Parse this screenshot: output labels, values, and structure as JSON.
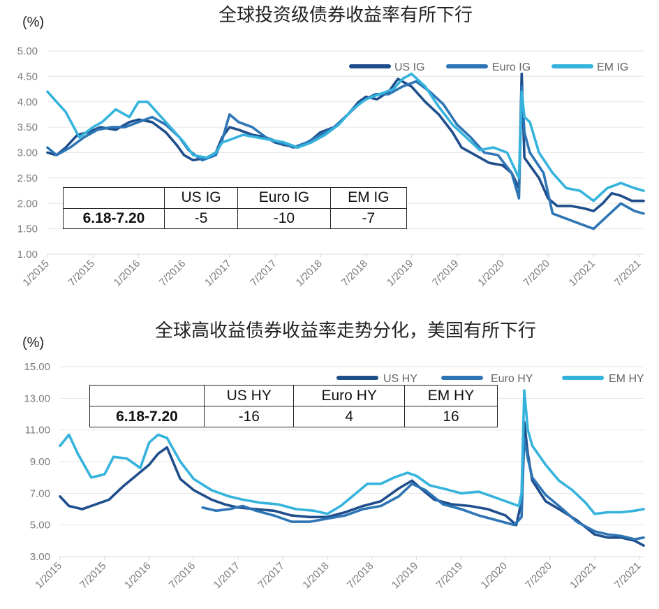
{
  "chart_data": [
    {
      "type": "line",
      "title": "全球投资级债券收益率有所下行",
      "unit_label": "(%)",
      "ylim": [
        1.0,
        5.0
      ],
      "yticks": [
        "5.00",
        "4.50",
        "4.00",
        "3.50",
        "3.00",
        "2.50",
        "2.00",
        "1.50",
        "1.00"
      ],
      "xlim": [
        2015.0,
        2021.55
      ],
      "xticks": [
        "1/2015",
        "7/2015",
        "1/2016",
        "7/2016",
        "1/2017",
        "7/2017",
        "1/2018",
        "7/2018",
        "1/2019",
        "7/2019",
        "1/2020",
        "7/2020",
        "1/2021",
        "7/2021"
      ],
      "grid": true,
      "legend_position": "top-right",
      "series": [
        {
          "name": "US IG",
          "color": "#1f4e8c",
          "x": [
            2015.0,
            2015.1,
            2015.2,
            2015.33,
            2015.45,
            2015.58,
            2015.75,
            2015.9,
            2016.0,
            2016.15,
            2016.3,
            2016.42,
            2016.5,
            2016.6,
            2016.75,
            2016.85,
            2016.92,
            2017.0,
            2017.1,
            2017.25,
            2017.4,
            2017.5,
            2017.6,
            2017.75,
            2017.9,
            2018.0,
            2018.15,
            2018.3,
            2018.42,
            2018.5,
            2018.62,
            2018.75,
            2018.85,
            2019.0,
            2019.15,
            2019.3,
            2019.45,
            2019.55,
            2019.7,
            2019.85,
            2020.0,
            2020.1,
            2020.18,
            2020.21,
            2020.24,
            2020.3,
            2020.4,
            2020.5,
            2020.6,
            2020.75,
            2020.9,
            2021.0,
            2021.1,
            2021.2,
            2021.3,
            2021.42,
            2021.55
          ],
          "values": [
            3.0,
            2.95,
            3.1,
            3.35,
            3.4,
            3.5,
            3.45,
            3.6,
            3.65,
            3.6,
            3.4,
            3.15,
            2.95,
            2.85,
            2.9,
            3.0,
            3.3,
            3.5,
            3.45,
            3.35,
            3.3,
            3.2,
            3.15,
            3.1,
            3.25,
            3.4,
            3.5,
            3.75,
            4.0,
            4.1,
            4.05,
            4.2,
            4.45,
            4.3,
            4.0,
            3.75,
            3.4,
            3.1,
            2.95,
            2.8,
            2.75,
            2.6,
            2.3,
            4.55,
            2.9,
            2.75,
            2.5,
            2.1,
            1.95,
            1.95,
            1.9,
            1.85,
            2.0,
            2.2,
            2.15,
            2.05,
            2.05
          ]
        },
        {
          "name": "Euro IG",
          "color": "#2e75b6",
          "x": [
            2015.0,
            2015.1,
            2015.25,
            2015.4,
            2015.55,
            2015.7,
            2015.85,
            2016.0,
            2016.15,
            2016.3,
            2016.45,
            2016.55,
            2016.7,
            2016.85,
            2016.92,
            2017.0,
            2017.1,
            2017.25,
            2017.4,
            2017.55,
            2017.7,
            2017.85,
            2018.0,
            2018.15,
            2018.3,
            2018.45,
            2018.6,
            2018.75,
            2018.9,
            2019.05,
            2019.2,
            2019.35,
            2019.5,
            2019.65,
            2019.8,
            2019.95,
            2020.1,
            2020.18,
            2020.21,
            2020.24,
            2020.3,
            2020.45,
            2020.55,
            2020.7,
            2020.85,
            2021.0,
            2021.15,
            2021.3,
            2021.45,
            2021.55
          ],
          "values": [
            3.1,
            2.95,
            3.1,
            3.3,
            3.45,
            3.5,
            3.5,
            3.6,
            3.7,
            3.55,
            3.3,
            3.05,
            2.85,
            2.95,
            3.25,
            3.75,
            3.6,
            3.5,
            3.3,
            3.2,
            3.1,
            3.2,
            3.35,
            3.5,
            3.75,
            4.0,
            4.15,
            4.15,
            4.3,
            4.4,
            4.2,
            3.95,
            3.55,
            3.3,
            3.0,
            2.95,
            2.6,
            2.1,
            4.3,
            3.4,
            3.0,
            2.6,
            1.8,
            1.7,
            1.6,
            1.5,
            1.75,
            2.0,
            1.85,
            1.8
          ]
        },
        {
          "name": "EM IG",
          "color": "#35b3dd",
          "x": [
            2015.0,
            2015.1,
            2015.2,
            2015.35,
            2015.5,
            2015.6,
            2015.75,
            2015.9,
            2016.0,
            2016.1,
            2016.3,
            2016.5,
            2016.6,
            2016.75,
            2016.85,
            2016.92,
            2017.0,
            2017.15,
            2017.3,
            2017.45,
            2017.6,
            2017.75,
            2017.9,
            2018.05,
            2018.2,
            2018.35,
            2018.5,
            2018.65,
            2018.8,
            2018.9,
            2019.0,
            2019.15,
            2019.3,
            2019.45,
            2019.6,
            2019.75,
            2019.9,
            2020.05,
            2020.18,
            2020.21,
            2020.24,
            2020.3,
            2020.4,
            2020.55,
            2020.7,
            2020.85,
            2021.0,
            2021.15,
            2021.3,
            2021.45,
            2021.55
          ],
          "values": [
            4.2,
            4.0,
            3.8,
            3.3,
            3.5,
            3.6,
            3.85,
            3.7,
            4.0,
            4.0,
            3.6,
            3.2,
            2.95,
            2.9,
            3.0,
            3.2,
            3.25,
            3.35,
            3.3,
            3.25,
            3.2,
            3.1,
            3.2,
            3.35,
            3.55,
            3.85,
            4.05,
            4.15,
            4.25,
            4.45,
            4.55,
            4.3,
            3.9,
            3.55,
            3.3,
            3.05,
            3.1,
            3.0,
            2.5,
            4.2,
            3.7,
            3.6,
            3.0,
            2.6,
            2.3,
            2.25,
            2.05,
            2.3,
            2.4,
            2.3,
            2.25
          ]
        }
      ],
      "table": {
        "headers": [
          "",
          "US IG",
          "Euro IG",
          "EM IG"
        ],
        "row_label": "6.18-7.20",
        "values": [
          "-5",
          "-10",
          "-7"
        ]
      }
    },
    {
      "type": "line",
      "title": "全球高收益债券收益率走势分化，美国有所下行",
      "unit_label": "(%)",
      "ylim": [
        3.0,
        15.0
      ],
      "yticks": [
        "15.00",
        "13.00",
        "11.00",
        "9.00",
        "7.00",
        "5.00",
        "3.00"
      ],
      "xlim": [
        2015.0,
        2021.55
      ],
      "xticks": [
        "1/2015",
        "7/2015",
        "1/2016",
        "7/2016",
        "1/2017",
        "7/2017",
        "1/2018",
        "7/2018",
        "1/2019",
        "7/2019",
        "1/2020",
        "7/2020",
        "1/2021",
        "7/2021"
      ],
      "grid": true,
      "legend_position": "top-right",
      "series": [
        {
          "name": "US HY",
          "color": "#1f4e8c",
          "x": [
            2015.0,
            2015.1,
            2015.25,
            2015.4,
            2015.55,
            2015.7,
            2015.85,
            2016.0,
            2016.1,
            2016.2,
            2016.35,
            2016.5,
            2016.7,
            2016.85,
            2017.0,
            2017.2,
            2017.4,
            2017.6,
            2017.8,
            2018.0,
            2018.2,
            2018.4,
            2018.6,
            2018.8,
            2018.95,
            2019.05,
            2019.2,
            2019.4,
            2019.6,
            2019.8,
            2020.0,
            2020.12,
            2020.18,
            2020.21,
            2020.25,
            2020.3,
            2020.45,
            2020.6,
            2020.8,
            2021.0,
            2021.15,
            2021.3,
            2021.45,
            2021.55
          ],
          "values": [
            6.8,
            6.2,
            6.0,
            6.3,
            6.6,
            7.4,
            8.1,
            8.8,
            9.5,
            9.9,
            7.9,
            7.2,
            6.6,
            6.3,
            6.1,
            6.0,
            5.9,
            5.6,
            5.5,
            5.5,
            5.8,
            6.2,
            6.5,
            7.3,
            7.8,
            7.3,
            6.6,
            6.3,
            6.2,
            6.0,
            5.6,
            5.0,
            6.5,
            11.5,
            9.5,
            7.8,
            6.5,
            6.0,
            5.3,
            4.4,
            4.2,
            4.2,
            4.0,
            3.7
          ]
        },
        {
          "name": "Euro HY",
          "color": "#2e75b6",
          "x": [
            2016.6,
            2016.75,
            2016.9,
            2017.05,
            2017.2,
            2017.4,
            2017.6,
            2017.8,
            2018.0,
            2018.2,
            2018.4,
            2018.6,
            2018.8,
            2018.95,
            2019.1,
            2019.3,
            2019.5,
            2019.7,
            2019.9,
            2020.1,
            2020.18,
            2020.21,
            2020.25,
            2020.3,
            2020.45,
            2020.6,
            2020.8,
            2021.0,
            2021.15,
            2021.3,
            2021.45,
            2021.55
          ],
          "values": [
            6.1,
            5.9,
            6.0,
            6.2,
            5.9,
            5.6,
            5.2,
            5.2,
            5.4,
            5.6,
            6.0,
            6.2,
            6.8,
            7.6,
            7.2,
            6.3,
            6.0,
            5.6,
            5.3,
            5.0,
            5.5,
            10.5,
            9.2,
            8.0,
            6.9,
            6.2,
            5.2,
            4.6,
            4.4,
            4.3,
            4.1,
            4.2
          ]
        },
        {
          "name": "EM HY",
          "color": "#35b3dd",
          "x": [
            2015.0,
            2015.1,
            2015.2,
            2015.35,
            2015.5,
            2015.6,
            2015.75,
            2015.9,
            2016.0,
            2016.1,
            2016.2,
            2016.35,
            2016.5,
            2016.7,
            2016.9,
            2017.05,
            2017.25,
            2017.45,
            2017.65,
            2017.85,
            2018.0,
            2018.15,
            2018.3,
            2018.45,
            2018.6,
            2018.75,
            2018.9,
            2019.0,
            2019.15,
            2019.3,
            2019.5,
            2019.7,
            2019.9,
            2020.05,
            2020.15,
            2020.18,
            2020.21,
            2020.25,
            2020.3,
            2020.45,
            2020.6,
            2020.75,
            2020.9,
            2021.0,
            2021.15,
            2021.3,
            2021.45,
            2021.55
          ],
          "values": [
            10.0,
            10.7,
            9.5,
            8.0,
            8.2,
            9.3,
            9.2,
            8.6,
            10.2,
            10.7,
            10.5,
            9.0,
            7.9,
            7.2,
            6.8,
            6.6,
            6.4,
            6.3,
            6.0,
            5.9,
            5.7,
            6.2,
            6.9,
            7.6,
            7.6,
            8.0,
            8.3,
            8.1,
            7.5,
            7.3,
            7.0,
            7.1,
            6.7,
            6.4,
            6.2,
            7.0,
            13.5,
            11.0,
            10.0,
            8.8,
            7.8,
            7.2,
            6.4,
            5.7,
            5.8,
            5.8,
            5.9,
            6.0
          ]
        }
      ],
      "table": {
        "headers": [
          "",
          "US HY",
          "Euro HY",
          "EM HY"
        ],
        "row_label": "6.18-7.20",
        "values": [
          "-16",
          "4",
          "16"
        ]
      }
    }
  ]
}
